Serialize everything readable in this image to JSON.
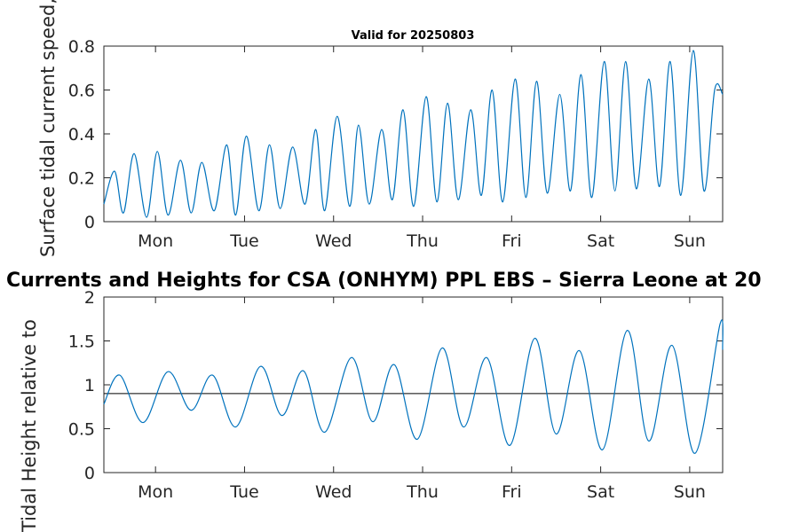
{
  "figure_title": "Currents and Heights for CSA (ONHYM) PPL EBS  – Sierra Leone at 20",
  "chart_data": [
    {
      "type": "line",
      "title": "Valid for 20250803",
      "ylabel": "Surface tidal current speed, kn",
      "ylabel_visible": "Surface tidal current speed, kn",
      "xlim": [
        0,
        6.95
      ],
      "ylim": [
        0,
        0.8
      ],
      "yticks": [
        0,
        0.2,
        0.4,
        0.6,
        0.8
      ],
      "ytick_labels": [
        "0",
        "0.2",
        "0.4",
        "0.6",
        "0.8"
      ],
      "xtick_labels": [
        "Mon",
        "Tue",
        "Wed",
        "Thu",
        "Fri",
        "Sat",
        "Sun"
      ],
      "xtick_positions": [
        0.58,
        1.58,
        2.58,
        3.58,
        4.58,
        5.58,
        6.58
      ],
      "line_color": "#0072BD",
      "series": [
        {
          "x": [
            0,
            0.12,
            0.22,
            0.34,
            0.48,
            0.6,
            0.72,
            0.86,
            0.98,
            1.1,
            1.24,
            1.38,
            1.48,
            1.6,
            1.74,
            1.86,
            1.98,
            2.12,
            2.26,
            2.38,
            2.48,
            2.62,
            2.76,
            2.86,
            2.98,
            3.12,
            3.24,
            3.36,
            3.48,
            3.62,
            3.74,
            3.86,
            3.98,
            4.12,
            4.24,
            4.36,
            4.48,
            4.62,
            4.74,
            4.86,
            4.98,
            5.12,
            5.24,
            5.36,
            5.48,
            5.62,
            5.74,
            5.86,
            5.98,
            6.12,
            6.24,
            6.36,
            6.48,
            6.62,
            6.74,
            6.86,
            6.95
          ],
          "y": [
            0.08,
            0.23,
            0.04,
            0.31,
            0.02,
            0.32,
            0.03,
            0.28,
            0.04,
            0.27,
            0.05,
            0.35,
            0.03,
            0.39,
            0.05,
            0.35,
            0.06,
            0.34,
            0.08,
            0.42,
            0.05,
            0.48,
            0.07,
            0.44,
            0.08,
            0.42,
            0.1,
            0.51,
            0.07,
            0.57,
            0.09,
            0.54,
            0.1,
            0.51,
            0.12,
            0.6,
            0.09,
            0.65,
            0.11,
            0.64,
            0.13,
            0.58,
            0.14,
            0.67,
            0.11,
            0.73,
            0.14,
            0.73,
            0.15,
            0.65,
            0.16,
            0.73,
            0.12,
            0.78,
            0.14,
            0.6,
            0.58
          ]
        }
      ]
    },
    {
      "type": "line",
      "title": "",
      "ylabel": "Tidal Height relative to",
      "ylabel_visible": "Tidal Height relative to",
      "xlim": [
        0,
        6.95
      ],
      "ylim": [
        0,
        2
      ],
      "yticks": [
        0,
        0.5,
        1,
        1.5,
        2
      ],
      "ytick_labels": [
        "0",
        "0.5",
        "1",
        "1.5",
        "2"
      ],
      "xtick_labels": [
        "Mon",
        "Tue",
        "Wed",
        "Thu",
        "Fri",
        "Sat",
        "Sun"
      ],
      "xtick_positions": [
        0.58,
        1.58,
        2.58,
        3.58,
        4.58,
        5.58,
        6.58
      ],
      "line_color": "#0072BD",
      "reference_line": {
        "y": 0.9,
        "color": "#000000"
      },
      "series": [
        {
          "x": [
            0,
            0.18,
            0.44,
            0.72,
            0.98,
            1.22,
            1.48,
            1.76,
            2.0,
            2.24,
            2.48,
            2.78,
            3.02,
            3.26,
            3.52,
            3.8,
            4.04,
            4.3,
            4.56,
            4.84,
            5.08,
            5.34,
            5.6,
            5.88,
            6.12,
            6.38,
            6.64,
            6.92,
            6.95
          ],
          "y": [
            0.78,
            1.11,
            0.57,
            1.15,
            0.71,
            1.11,
            0.52,
            1.21,
            0.65,
            1.16,
            0.46,
            1.31,
            0.58,
            1.23,
            0.38,
            1.42,
            0.52,
            1.31,
            0.31,
            1.53,
            0.44,
            1.39,
            0.26,
            1.62,
            0.36,
            1.45,
            0.22,
            1.69,
            1.4
          ]
        }
      ]
    }
  ]
}
